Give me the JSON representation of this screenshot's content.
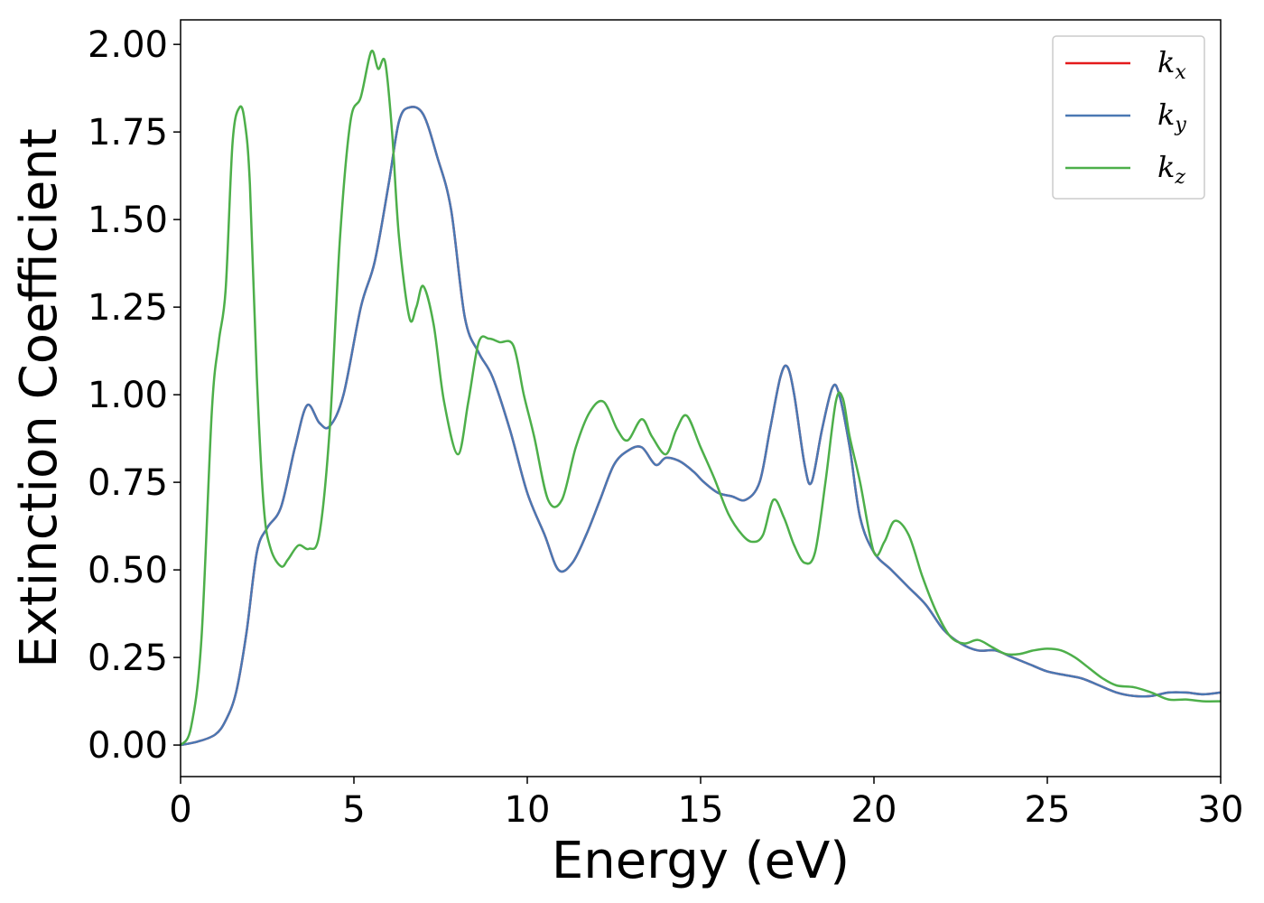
{
  "chart_data": {
    "type": "line",
    "title": "",
    "xlabel": "Energy (eV)",
    "ylabel": "Extinction Coefficient",
    "xlim": [
      0,
      30
    ],
    "ylim": [
      -0.09,
      2.07
    ],
    "xticks": [
      0,
      5,
      10,
      15,
      20,
      25,
      30
    ],
    "xtick_labels": [
      "0",
      "5",
      "10",
      "15",
      "20",
      "25",
      "30"
    ],
    "yticks": [
      0,
      0.25,
      0.5,
      0.75,
      1.0,
      1.25,
      1.5,
      1.75,
      2.0
    ],
    "ytick_labels": [
      "0.00",
      "0.25",
      "0.50",
      "0.75",
      "1.00",
      "1.25",
      "1.50",
      "1.75",
      "2.00"
    ],
    "grid": false,
    "legend_position": "top-right",
    "series": [
      {
        "name": "k",
        "subscript": "x",
        "color": "#e41a1c",
        "x": [
          0,
          0.5,
          1,
          1.3,
          1.6,
          1.9,
          2.2,
          2.5,
          2.9,
          3.3,
          3.65,
          4.0,
          4.3,
          4.7,
          5.2,
          5.6,
          6.0,
          6.3,
          6.6,
          7.0,
          7.4,
          7.8,
          8.2,
          8.6,
          9.0,
          9.5,
          10.0,
          10.5,
          10.9,
          11.3,
          11.7,
          12.1,
          12.5,
          12.9,
          13.3,
          13.7,
          14.0,
          14.4,
          14.8,
          15.1,
          15.5,
          15.9,
          16.3,
          16.7,
          17.0,
          17.3,
          17.5,
          17.7,
          18.0,
          18.2,
          18.5,
          18.8,
          19.0,
          19.3,
          19.6,
          20.0,
          20.5,
          21.0,
          21.5,
          22.0,
          22.5,
          23.0,
          23.5,
          24.0,
          24.5,
          25.0,
          25.5,
          26.0,
          26.5,
          27.0,
          27.5,
          28.0,
          28.5,
          29.0,
          29.5,
          30.0
        ],
        "y": [
          0,
          0.01,
          0.03,
          0.07,
          0.15,
          0.32,
          0.55,
          0.62,
          0.68,
          0.85,
          0.97,
          0.92,
          0.91,
          1.0,
          1.25,
          1.38,
          1.6,
          1.78,
          1.82,
          1.8,
          1.68,
          1.53,
          1.22,
          1.12,
          1.05,
          0.9,
          0.72,
          0.6,
          0.5,
          0.52,
          0.6,
          0.7,
          0.8,
          0.84,
          0.85,
          0.8,
          0.82,
          0.81,
          0.78,
          0.75,
          0.72,
          0.71,
          0.7,
          0.75,
          0.9,
          1.05,
          1.08,
          1.0,
          0.8,
          0.75,
          0.9,
          1.02,
          1.0,
          0.85,
          0.65,
          0.55,
          0.5,
          0.45,
          0.4,
          0.33,
          0.29,
          0.27,
          0.27,
          0.25,
          0.23,
          0.21,
          0.2,
          0.19,
          0.17,
          0.15,
          0.14,
          0.14,
          0.15,
          0.15,
          0.145,
          0.15
        ]
      },
      {
        "name": "k",
        "subscript": "y",
        "color": "#4a78b3",
        "x": [
          0,
          0.5,
          1,
          1.3,
          1.6,
          1.9,
          2.2,
          2.5,
          2.9,
          3.3,
          3.65,
          4.0,
          4.3,
          4.7,
          5.2,
          5.6,
          6.0,
          6.3,
          6.6,
          7.0,
          7.4,
          7.8,
          8.2,
          8.6,
          9.0,
          9.5,
          10.0,
          10.5,
          10.9,
          11.3,
          11.7,
          12.1,
          12.5,
          12.9,
          13.3,
          13.7,
          14.0,
          14.4,
          14.8,
          15.1,
          15.5,
          15.9,
          16.3,
          16.7,
          17.0,
          17.3,
          17.5,
          17.7,
          18.0,
          18.2,
          18.5,
          18.8,
          19.0,
          19.3,
          19.6,
          20.0,
          20.5,
          21.0,
          21.5,
          22.0,
          22.5,
          23.0,
          23.5,
          24.0,
          24.5,
          25.0,
          25.5,
          26.0,
          26.5,
          27.0,
          27.5,
          28.0,
          28.5,
          29.0,
          29.5,
          30.0
        ],
        "y": [
          0,
          0.01,
          0.03,
          0.07,
          0.15,
          0.32,
          0.55,
          0.62,
          0.68,
          0.85,
          0.97,
          0.92,
          0.91,
          1.0,
          1.25,
          1.38,
          1.6,
          1.78,
          1.82,
          1.8,
          1.68,
          1.53,
          1.22,
          1.12,
          1.05,
          0.9,
          0.72,
          0.6,
          0.5,
          0.52,
          0.6,
          0.7,
          0.8,
          0.84,
          0.85,
          0.8,
          0.82,
          0.81,
          0.78,
          0.75,
          0.72,
          0.71,
          0.7,
          0.75,
          0.9,
          1.05,
          1.08,
          1.0,
          0.8,
          0.75,
          0.9,
          1.02,
          1.0,
          0.85,
          0.65,
          0.55,
          0.5,
          0.45,
          0.4,
          0.33,
          0.29,
          0.27,
          0.27,
          0.25,
          0.23,
          0.21,
          0.2,
          0.19,
          0.17,
          0.15,
          0.14,
          0.14,
          0.15,
          0.15,
          0.145,
          0.15
        ]
      },
      {
        "name": "k",
        "subscript": "z",
        "color": "#4daf4a",
        "x": [
          0,
          0.3,
          0.6,
          0.9,
          1.1,
          1.3,
          1.5,
          1.7,
          1.85,
          2.0,
          2.2,
          2.4,
          2.6,
          2.9,
          3.1,
          3.4,
          3.7,
          4.0,
          4.3,
          4.6,
          4.9,
          5.2,
          5.5,
          5.7,
          5.9,
          6.1,
          6.3,
          6.6,
          6.8,
          7.0,
          7.3,
          7.6,
          8.0,
          8.3,
          8.6,
          8.9,
          9.2,
          9.6,
          9.9,
          10.2,
          10.6,
          11.0,
          11.4,
          11.8,
          12.2,
          12.6,
          12.9,
          13.3,
          13.6,
          14.0,
          14.3,
          14.6,
          15.0,
          15.4,
          15.8,
          16.2,
          16.5,
          16.8,
          17.1,
          17.4,
          17.7,
          18.0,
          18.3,
          18.6,
          18.9,
          19.1,
          19.3,
          19.6,
          20.0,
          20.3,
          20.6,
          21.0,
          21.4,
          21.8,
          22.2,
          22.6,
          23.0,
          23.4,
          23.8,
          24.2,
          24.6,
          25.0,
          25.4,
          25.8,
          26.2,
          26.6,
          27.0,
          27.5,
          28.0,
          28.5,
          29.0,
          29.5,
          30.0
        ],
        "y": [
          0,
          0.05,
          0.3,
          0.95,
          1.15,
          1.3,
          1.72,
          1.82,
          1.78,
          1.6,
          1.05,
          0.68,
          0.56,
          0.51,
          0.53,
          0.57,
          0.56,
          0.6,
          0.9,
          1.45,
          1.78,
          1.85,
          1.98,
          1.93,
          1.95,
          1.75,
          1.45,
          1.22,
          1.25,
          1.31,
          1.2,
          0.98,
          0.83,
          0.98,
          1.15,
          1.16,
          1.15,
          1.14,
          1.0,
          0.88,
          0.7,
          0.7,
          0.85,
          0.95,
          0.98,
          0.9,
          0.87,
          0.93,
          0.88,
          0.83,
          0.9,
          0.94,
          0.85,
          0.76,
          0.66,
          0.6,
          0.58,
          0.6,
          0.7,
          0.65,
          0.57,
          0.52,
          0.55,
          0.75,
          0.98,
          0.99,
          0.88,
          0.75,
          0.55,
          0.58,
          0.64,
          0.6,
          0.48,
          0.38,
          0.31,
          0.29,
          0.3,
          0.28,
          0.26,
          0.26,
          0.27,
          0.275,
          0.27,
          0.25,
          0.22,
          0.19,
          0.17,
          0.165,
          0.15,
          0.13,
          0.13,
          0.125,
          0.125
        ]
      }
    ]
  }
}
